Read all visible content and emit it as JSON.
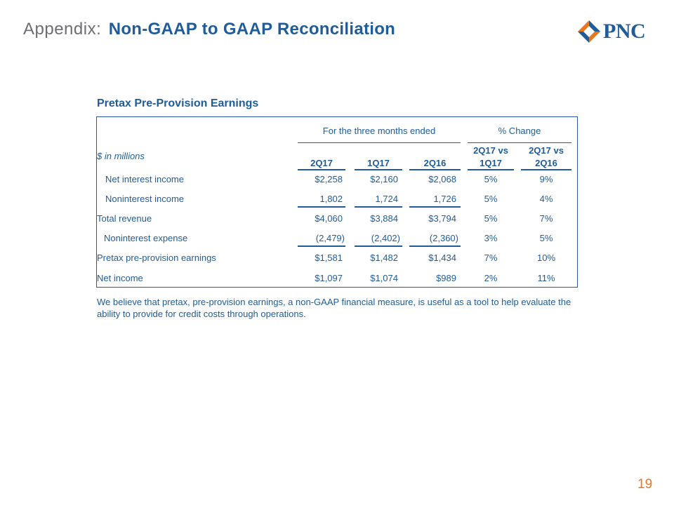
{
  "header": {
    "prefix": "Appendix:",
    "title": "Non-GAAP to GAAP Reconciliation"
  },
  "logo": {
    "text": "PNC",
    "accent": "#e87722"
  },
  "section": {
    "title": "Pretax Pre-Provision Earnings"
  },
  "table": {
    "group_headers": {
      "period": "For the three months ended",
      "change": "% Change"
    },
    "units_label": "$ in millions",
    "columns": [
      "2Q17",
      "1Q17",
      "2Q16"
    ],
    "change_columns": [
      {
        "line1": "2Q17 vs",
        "line2": "1Q17"
      },
      {
        "line1": "2Q17 vs",
        "line2": "2Q16"
      }
    ],
    "rows": [
      {
        "label": "Net interest income",
        "values": [
          "$2,258",
          "$2,160",
          "$2,068"
        ],
        "changes": [
          "5%",
          "9%"
        ]
      },
      {
        "label": "Noninterest income",
        "values": [
          "1,802",
          "1,724",
          "1,726"
        ],
        "changes": [
          "5%",
          "4%"
        ]
      },
      {
        "label": "Total revenue",
        "values": [
          "$4,060",
          "$3,884",
          "$3,794"
        ],
        "changes": [
          "5%",
          "7%"
        ]
      },
      {
        "label": "Noninterest expense",
        "values": [
          "(2,479)",
          "(2,402)",
          "(2,360)"
        ],
        "changes": [
          "3%",
          "5%"
        ]
      },
      {
        "label": "Pretax pre-provision earnings",
        "values": [
          "$1,581",
          "$1,482",
          "$1,434"
        ],
        "changes": [
          "7%",
          "10%"
        ]
      },
      {
        "label": "Net income",
        "values": [
          "$1,097",
          "$1,074",
          "$989"
        ],
        "changes": [
          "2%",
          "11%"
        ]
      }
    ]
  },
  "note": "We believe that pretax, pre-provision earnings, a non-GAAP financial measure, is useful as a tool to help evaluate the ability to provide for credit costs through operations.",
  "page_number": "19",
  "colors": {
    "primary": "#1f5c99",
    "accent": "#e87722",
    "gray": "#6d6e71"
  }
}
